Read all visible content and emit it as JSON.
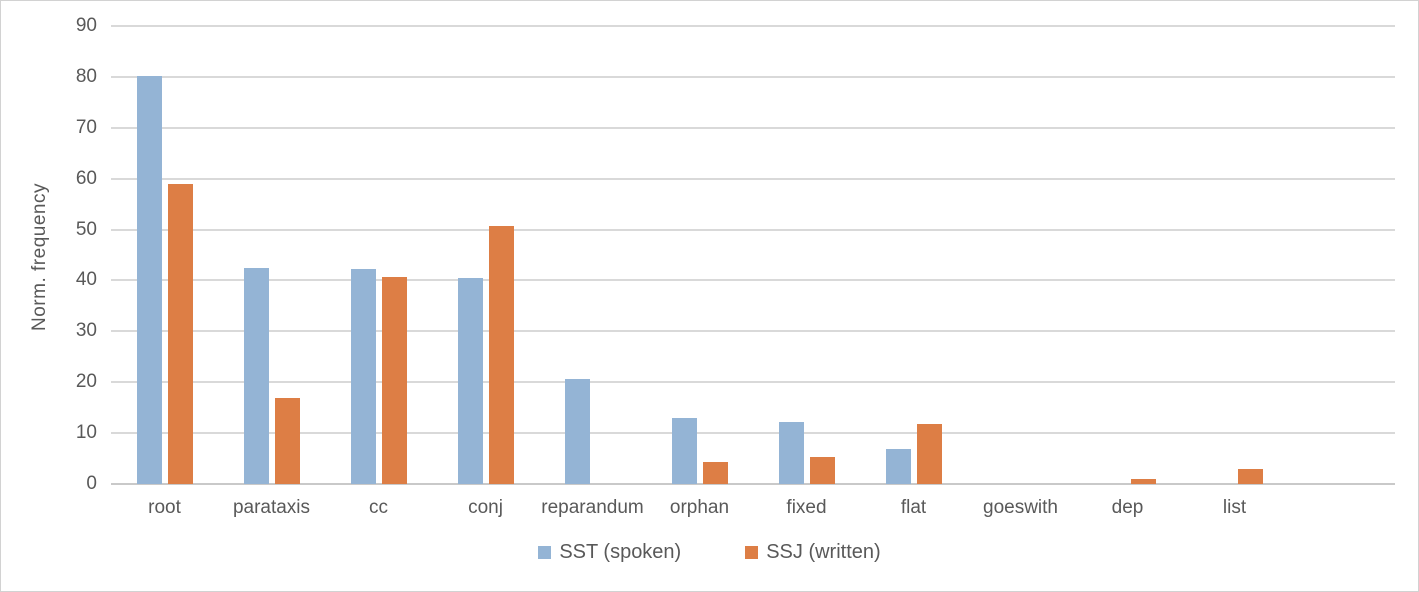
{
  "chart_data": {
    "type": "bar",
    "title": "",
    "xlabel": "",
    "ylabel": "Norm. frequency",
    "ylim": [
      0,
      90
    ],
    "y_tick_step": 10,
    "y_ticks": [
      0,
      10,
      20,
      30,
      40,
      50,
      60,
      70,
      80,
      90
    ],
    "grid": true,
    "legend_position": "bottom",
    "categories": [
      "root",
      "parataxis",
      "cc",
      "conj",
      "reparandum",
      "orphan",
      "fixed",
      "flat",
      "goeswith",
      "dep",
      "list"
    ],
    "series": [
      {
        "name": "SST (spoken)",
        "color": "#94b4d5",
        "values": [
          80.2,
          42.4,
          42.2,
          40.5,
          20.6,
          13.0,
          12.2,
          6.9,
          0,
          0,
          0
        ]
      },
      {
        "name": "SSJ (written)",
        "color": "#dd7e45",
        "values": [
          59.0,
          16.9,
          40.7,
          50.7,
          0,
          4.3,
          5.3,
          11.8,
          0,
          0.9,
          2.9
        ]
      }
    ]
  },
  "colors": {
    "gridline": "#d9d9d9",
    "axis_line": "#c9c9c9",
    "text": "#595959",
    "background": "#ffffff"
  }
}
